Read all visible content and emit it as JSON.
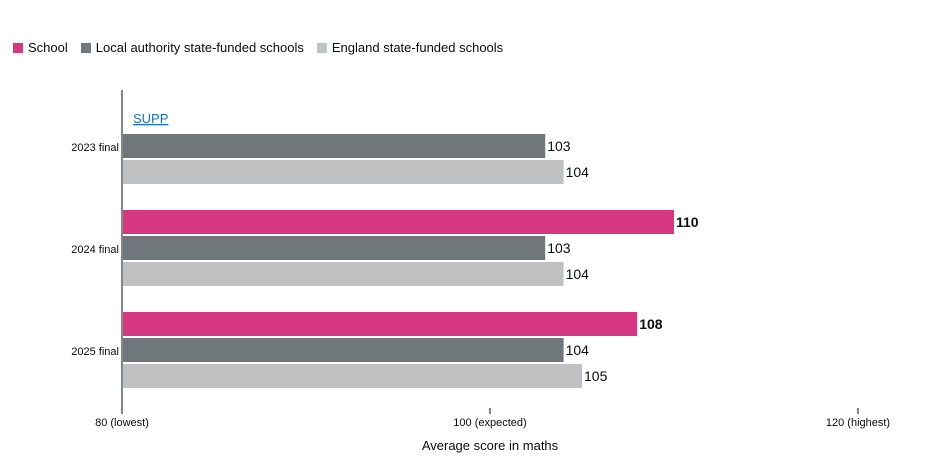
{
  "legend": {
    "items": [
      {
        "label": "School",
        "color": "#d53880"
      },
      {
        "label": "Local authority state-funded schools",
        "color": "#6f777b"
      },
      {
        "label": "England state-funded schools",
        "color": "#bfc1c3"
      }
    ]
  },
  "chart_data": {
    "type": "bar",
    "orientation": "horizontal",
    "categories": [
      "2023 final",
      "2024 final",
      "2025 final"
    ],
    "series": [
      {
        "name": "School",
        "values": [
          null,
          110,
          108
        ],
        "color": "#d53880"
      },
      {
        "name": "Local authority state-funded schools",
        "values": [
          103,
          103,
          104
        ],
        "color": "#6f777b"
      },
      {
        "name": "England state-funded schools",
        "values": [
          104,
          104,
          105
        ],
        "color": "#bfc1c3"
      }
    ],
    "annotations": [
      {
        "category": "2023 final",
        "series": "School",
        "text": "SUPP"
      }
    ],
    "xlim": [
      80,
      120
    ],
    "xticks": [
      {
        "value": 80,
        "label": "80 (lowest)"
      },
      {
        "value": 100,
        "label": "100 (expected)"
      },
      {
        "value": 120,
        "label": "120 (highest)"
      }
    ],
    "xlabel": "Average score in maths",
    "grid": false,
    "legend_position": "top-left"
  }
}
